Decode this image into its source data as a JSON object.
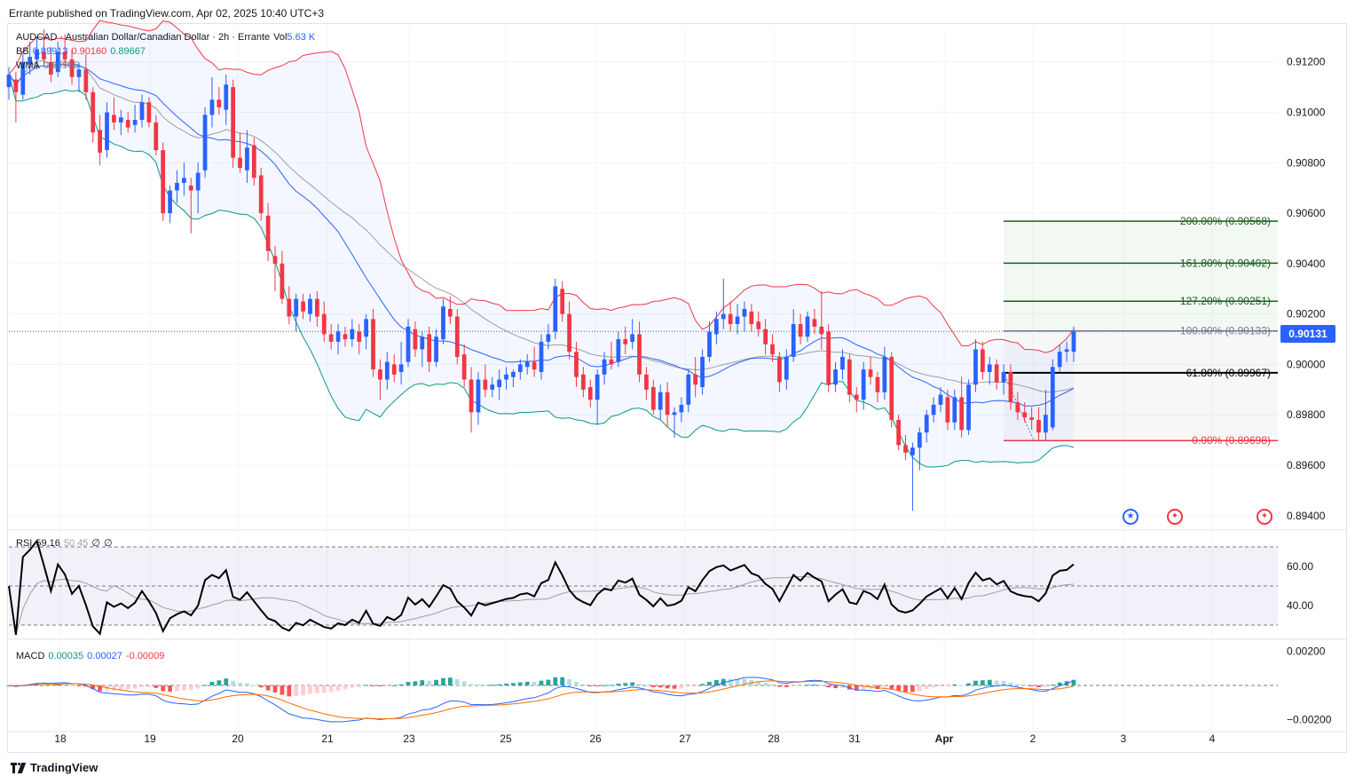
{
  "header": {
    "publisher": "Errante published on TradingView.com, Apr 02, 2025 10:40 UTC+3"
  },
  "legend": {
    "symbol": "AUDCAD · Australian Dollar/Canadian Dollar · 2h · Errante",
    "vol_label": "Vol",
    "vol_value": "5.63 K",
    "bb_label": "BB",
    "bb_basis": "0.89913",
    "bb_upper": "0.90160",
    "bb_lower": "0.89667",
    "wma_label": "WMA",
    "wma_value": "0.89905"
  },
  "rsi_legend": {
    "label": "RSI",
    "value": "59.16",
    "ma": "50.45",
    "a": "∅",
    "b": "∅"
  },
  "macd_legend": {
    "label": "MACD",
    "hist": "0.00035",
    "macd": "0.00027",
    "signal": "-0.00009"
  },
  "last_price": "0.90131",
  "footer": {
    "brand": "TradingView"
  },
  "colors": {
    "up": "#2962ff",
    "down": "#f23645",
    "bb_upper": "#f23645",
    "bb_basis": "#2962ff",
    "bb_lower": "#089981",
    "wma": "#9e9e9e",
    "rsi": "#000000",
    "macd": "#2962ff",
    "signal": "#ff6d00"
  },
  "chart_data": {
    "type": "candlestick",
    "symbol": "AUDCAD",
    "interval": "2h",
    "y_axis_ticks": [
      0.912,
      0.91,
      0.908,
      0.906,
      0.904,
      0.902,
      0.9,
      0.898,
      0.896,
      0.894
    ],
    "y_axis_labels": [
      "0.91200",
      "0.91000",
      "0.90800",
      "0.90600",
      "0.90400",
      "0.90200",
      "0.90000",
      "0.89800",
      "0.89600",
      "0.89400"
    ],
    "x_axis_labels": [
      "18",
      "19",
      "20",
      "21",
      "23",
      "25",
      "26",
      "27",
      "28",
      "31",
      "Apr",
      "2",
      "3",
      "4"
    ],
    "ylim": [
      0.8935,
      0.9134
    ],
    "candles": [
      {
        "o": 0.911,
        "h": 0.9118,
        "l": 0.9105,
        "c": 0.9115
      },
      {
        "o": 0.9113,
        "h": 0.9116,
        "l": 0.9096,
        "c": 0.9108
      },
      {
        "o": 0.9107,
        "h": 0.9123,
        "l": 0.9105,
        "c": 0.912
      },
      {
        "o": 0.9119,
        "h": 0.9128,
        "l": 0.9115,
        "c": 0.9122
      },
      {
        "o": 0.9121,
        "h": 0.913,
        "l": 0.9117,
        "c": 0.9125
      },
      {
        "o": 0.9124,
        "h": 0.9133,
        "l": 0.9119,
        "c": 0.9121
      },
      {
        "o": 0.912,
        "h": 0.9126,
        "l": 0.9112,
        "c": 0.9115
      },
      {
        "o": 0.9116,
        "h": 0.9128,
        "l": 0.9114,
        "c": 0.9124
      },
      {
        "o": 0.9124,
        "h": 0.9131,
        "l": 0.9118,
        "c": 0.9121
      },
      {
        "o": 0.9121,
        "h": 0.9125,
        "l": 0.9111,
        "c": 0.9114
      },
      {
        "o": 0.9114,
        "h": 0.912,
        "l": 0.9108,
        "c": 0.9117
      },
      {
        "o": 0.9117,
        "h": 0.9123,
        "l": 0.9105,
        "c": 0.9108
      },
      {
        "o": 0.9108,
        "h": 0.911,
        "l": 0.9088,
        "c": 0.9092
      },
      {
        "o": 0.9093,
        "h": 0.9099,
        "l": 0.9079,
        "c": 0.9084
      },
      {
        "o": 0.9085,
        "h": 0.9104,
        "l": 0.9082,
        "c": 0.91
      },
      {
        "o": 0.9099,
        "h": 0.9106,
        "l": 0.9093,
        "c": 0.9096
      },
      {
        "o": 0.9096,
        "h": 0.9101,
        "l": 0.9091,
        "c": 0.9098
      },
      {
        "o": 0.9097,
        "h": 0.91,
        "l": 0.9092,
        "c": 0.9094
      },
      {
        "o": 0.9095,
        "h": 0.9103,
        "l": 0.9092,
        "c": 0.9097
      },
      {
        "o": 0.9097,
        "h": 0.9107,
        "l": 0.9094,
        "c": 0.9104
      },
      {
        "o": 0.9104,
        "h": 0.9106,
        "l": 0.9094,
        "c": 0.9096
      },
      {
        "o": 0.9096,
        "h": 0.9099,
        "l": 0.9083,
        "c": 0.9085
      },
      {
        "o": 0.9085,
        "h": 0.9088,
        "l": 0.9057,
        "c": 0.906
      },
      {
        "o": 0.906,
        "h": 0.9071,
        "l": 0.9056,
        "c": 0.9069
      },
      {
        "o": 0.9069,
        "h": 0.9077,
        "l": 0.9064,
        "c": 0.9072
      },
      {
        "o": 0.9072,
        "h": 0.908,
        "l": 0.9067,
        "c": 0.9074
      },
      {
        "o": 0.9071,
        "h": 0.9074,
        "l": 0.9052,
        "c": 0.9069
      },
      {
        "o": 0.9069,
        "h": 0.908,
        "l": 0.906,
        "c": 0.9076
      },
      {
        "o": 0.9077,
        "h": 0.9102,
        "l": 0.9074,
        "c": 0.9099
      },
      {
        "o": 0.9099,
        "h": 0.9114,
        "l": 0.9094,
        "c": 0.9105
      },
      {
        "o": 0.9105,
        "h": 0.911,
        "l": 0.9099,
        "c": 0.9102
      },
      {
        "o": 0.9101,
        "h": 0.9115,
        "l": 0.9095,
        "c": 0.9111
      },
      {
        "o": 0.911,
        "h": 0.9113,
        "l": 0.9078,
        "c": 0.9082
      },
      {
        "o": 0.9082,
        "h": 0.9092,
        "l": 0.9076,
        "c": 0.9078
      },
      {
        "o": 0.9077,
        "h": 0.9093,
        "l": 0.9072,
        "c": 0.9086
      },
      {
        "o": 0.9087,
        "h": 0.909,
        "l": 0.9071,
        "c": 0.9074
      },
      {
        "o": 0.9075,
        "h": 0.9078,
        "l": 0.9057,
        "c": 0.906
      },
      {
        "o": 0.9059,
        "h": 0.9064,
        "l": 0.9041,
        "c": 0.9045
      },
      {
        "o": 0.9043,
        "h": 0.9047,
        "l": 0.9029,
        "c": 0.904
      },
      {
        "o": 0.904,
        "h": 0.9045,
        "l": 0.9024,
        "c": 0.9026
      },
      {
        "o": 0.9026,
        "h": 0.9031,
        "l": 0.9016,
        "c": 0.9019
      },
      {
        "o": 0.9019,
        "h": 0.9028,
        "l": 0.9013,
        "c": 0.9026
      },
      {
        "o": 0.9025,
        "h": 0.9028,
        "l": 0.9018,
        "c": 0.9021
      },
      {
        "o": 0.902,
        "h": 0.9028,
        "l": 0.9017,
        "c": 0.9026
      },
      {
        "o": 0.9026,
        "h": 0.9029,
        "l": 0.9015,
        "c": 0.9019
      },
      {
        "o": 0.902,
        "h": 0.9025,
        "l": 0.9009,
        "c": 0.9012
      },
      {
        "o": 0.9012,
        "h": 0.9016,
        "l": 0.9006,
        "c": 0.9009
      },
      {
        "o": 0.9009,
        "h": 0.9016,
        "l": 0.9004,
        "c": 0.9013
      },
      {
        "o": 0.9012,
        "h": 0.9015,
        "l": 0.9007,
        "c": 0.901
      },
      {
        "o": 0.901,
        "h": 0.9018,
        "l": 0.9007,
        "c": 0.9014
      },
      {
        "o": 0.9013,
        "h": 0.9016,
        "l": 0.9004,
        "c": 0.9009
      },
      {
        "o": 0.9011,
        "h": 0.902,
        "l": 0.9006,
        "c": 0.9018
      },
      {
        "o": 0.9018,
        "h": 0.9022,
        "l": 0.8995,
        "c": 0.8998
      },
      {
        "o": 0.8998,
        "h": 0.9002,
        "l": 0.8986,
        "c": 0.8994
      },
      {
        "o": 0.8994,
        "h": 0.9005,
        "l": 0.899,
        "c": 0.9001
      },
      {
        "o": 0.9,
        "h": 0.9004,
        "l": 0.8993,
        "c": 0.8996
      },
      {
        "o": 0.8997,
        "h": 0.9009,
        "l": 0.8992,
        "c": 0.9
      },
      {
        "o": 0.9001,
        "h": 0.9018,
        "l": 0.8999,
        "c": 0.9015
      },
      {
        "o": 0.9014,
        "h": 0.9017,
        "l": 0.9003,
        "c": 0.9006
      },
      {
        "o": 0.9006,
        "h": 0.9013,
        "l": 0.8999,
        "c": 0.9011
      },
      {
        "o": 0.9012,
        "h": 0.9015,
        "l": 0.8997,
        "c": 0.9001
      },
      {
        "o": 0.9001,
        "h": 0.9014,
        "l": 0.8999,
        "c": 0.9011
      },
      {
        "o": 0.901,
        "h": 0.9026,
        "l": 0.9008,
        "c": 0.9023
      },
      {
        "o": 0.9022,
        "h": 0.9027,
        "l": 0.9016,
        "c": 0.9019
      },
      {
        "o": 0.9019,
        "h": 0.9022,
        "l": 0.9,
        "c": 0.9003
      },
      {
        "o": 0.9004,
        "h": 0.9008,
        "l": 0.8991,
        "c": 0.8994
      },
      {
        "o": 0.8994,
        "h": 0.8999,
        "l": 0.8973,
        "c": 0.8981
      },
      {
        "o": 0.8981,
        "h": 0.8997,
        "l": 0.8976,
        "c": 0.8994
      },
      {
        "o": 0.8994,
        "h": 0.9,
        "l": 0.8987,
        "c": 0.899
      },
      {
        "o": 0.899,
        "h": 0.8995,
        "l": 0.8987,
        "c": 0.8992
      },
      {
        "o": 0.8991,
        "h": 0.8998,
        "l": 0.8986,
        "c": 0.8994
      },
      {
        "o": 0.8994,
        "h": 0.8999,
        "l": 0.899,
        "c": 0.8996
      },
      {
        "o": 0.8995,
        "h": 0.8998,
        "l": 0.8991,
        "c": 0.8997
      },
      {
        "o": 0.8997,
        "h": 0.9002,
        "l": 0.8994,
        "c": 0.9
      },
      {
        "o": 0.8999,
        "h": 0.9004,
        "l": 0.8996,
        "c": 0.9001
      },
      {
        "o": 0.9001,
        "h": 0.9007,
        "l": 0.8995,
        "c": 0.8998
      },
      {
        "o": 0.8997,
        "h": 0.9012,
        "l": 0.8994,
        "c": 0.9009
      },
      {
        "o": 0.9009,
        "h": 0.9016,
        "l": 0.9006,
        "c": 0.9012
      },
      {
        "o": 0.9013,
        "h": 0.9034,
        "l": 0.901,
        "c": 0.9031
      },
      {
        "o": 0.903,
        "h": 0.9033,
        "l": 0.9017,
        "c": 0.902
      },
      {
        "o": 0.902,
        "h": 0.9025,
        "l": 0.9002,
        "c": 0.9005
      },
      {
        "o": 0.9005,
        "h": 0.9009,
        "l": 0.8991,
        "c": 0.8995
      },
      {
        "o": 0.8996,
        "h": 0.8999,
        "l": 0.8987,
        "c": 0.899
      },
      {
        "o": 0.8991,
        "h": 0.8994,
        "l": 0.8983,
        "c": 0.8986
      },
      {
        "o": 0.8986,
        "h": 0.8998,
        "l": 0.8976,
        "c": 0.8996
      },
      {
        "o": 0.8996,
        "h": 0.9005,
        "l": 0.8992,
        "c": 0.9002
      },
      {
        "o": 0.9002,
        "h": 0.9009,
        "l": 0.8998,
        "c": 0.9
      },
      {
        "o": 0.9001,
        "h": 0.9013,
        "l": 0.8999,
        "c": 0.901
      },
      {
        "o": 0.901,
        "h": 0.9015,
        "l": 0.9004,
        "c": 0.9008
      },
      {
        "o": 0.9009,
        "h": 0.9018,
        "l": 0.9006,
        "c": 0.9012
      },
      {
        "o": 0.9012,
        "h": 0.9017,
        "l": 0.8993,
        "c": 0.8996
      },
      {
        "o": 0.8996,
        "h": 0.8999,
        "l": 0.8986,
        "c": 0.899
      },
      {
        "o": 0.8991,
        "h": 0.8994,
        "l": 0.898,
        "c": 0.8982
      },
      {
        "o": 0.8982,
        "h": 0.8992,
        "l": 0.8978,
        "c": 0.8989
      },
      {
        "o": 0.8989,
        "h": 0.8993,
        "l": 0.8975,
        "c": 0.898
      },
      {
        "o": 0.898,
        "h": 0.8983,
        "l": 0.8971,
        "c": 0.8981
      },
      {
        "o": 0.8981,
        "h": 0.8987,
        "l": 0.8977,
        "c": 0.8984
      },
      {
        "o": 0.8984,
        "h": 0.8998,
        "l": 0.8981,
        "c": 0.8996
      },
      {
        "o": 0.8996,
        "h": 0.9003,
        "l": 0.8987,
        "c": 0.8992
      },
      {
        "o": 0.8991,
        "h": 0.9006,
        "l": 0.8988,
        "c": 0.9003
      },
      {
        "o": 0.9003,
        "h": 0.9017,
        "l": 0.9001,
        "c": 0.9013
      },
      {
        "o": 0.9012,
        "h": 0.9021,
        "l": 0.9008,
        "c": 0.9018
      },
      {
        "o": 0.9018,
        "h": 0.9034,
        "l": 0.9014,
        "c": 0.902
      },
      {
        "o": 0.902,
        "h": 0.9025,
        "l": 0.9013,
        "c": 0.9016
      },
      {
        "o": 0.9016,
        "h": 0.9024,
        "l": 0.9012,
        "c": 0.9019
      },
      {
        "o": 0.9019,
        "h": 0.9025,
        "l": 0.9013,
        "c": 0.9022
      },
      {
        "o": 0.9021,
        "h": 0.9024,
        "l": 0.9013,
        "c": 0.9016
      },
      {
        "o": 0.9017,
        "h": 0.9021,
        "l": 0.9011,
        "c": 0.9014
      },
      {
        "o": 0.9014,
        "h": 0.9018,
        "l": 0.9004,
        "c": 0.9008
      },
      {
        "o": 0.9008,
        "h": 0.9012,
        "l": 0.9001,
        "c": 0.9004
      },
      {
        "o": 0.9003,
        "h": 0.9005,
        "l": 0.8989,
        "c": 0.8993
      },
      {
        "o": 0.8994,
        "h": 0.9006,
        "l": 0.899,
        "c": 0.9003
      },
      {
        "o": 0.9003,
        "h": 0.9022,
        "l": 0.9001,
        "c": 0.9016
      },
      {
        "o": 0.9016,
        "h": 0.902,
        "l": 0.9008,
        "c": 0.9011
      },
      {
        "o": 0.9011,
        "h": 0.9021,
        "l": 0.9009,
        "c": 0.9019
      },
      {
        "o": 0.9018,
        "h": 0.9022,
        "l": 0.9012,
        "c": 0.9015
      },
      {
        "o": 0.9015,
        "h": 0.9029,
        "l": 0.9006,
        "c": 0.9012
      },
      {
        "o": 0.9013,
        "h": 0.9016,
        "l": 0.8989,
        "c": 0.8992
      },
      {
        "o": 0.8992,
        "h": 0.9001,
        "l": 0.8989,
        "c": 0.8998
      },
      {
        "o": 0.8998,
        "h": 0.9006,
        "l": 0.8994,
        "c": 0.9003
      },
      {
        "o": 0.9002,
        "h": 0.9004,
        "l": 0.8985,
        "c": 0.8988
      },
      {
        "o": 0.8988,
        "h": 0.8991,
        "l": 0.8981,
        "c": 0.8986
      },
      {
        "o": 0.8986,
        "h": 0.9001,
        "l": 0.8982,
        "c": 0.8998
      },
      {
        "o": 0.8998,
        "h": 0.9003,
        "l": 0.8992,
        "c": 0.8995
      },
      {
        "o": 0.8995,
        "h": 0.8997,
        "l": 0.8985,
        "c": 0.8989
      },
      {
        "o": 0.8989,
        "h": 0.9007,
        "l": 0.8986,
        "c": 0.9003
      },
      {
        "o": 0.9003,
        "h": 0.9005,
        "l": 0.8975,
        "c": 0.8978
      },
      {
        "o": 0.8978,
        "h": 0.898,
        "l": 0.8966,
        "c": 0.8968
      },
      {
        "o": 0.8968,
        "h": 0.8972,
        "l": 0.8962,
        "c": 0.8965
      },
      {
        "o": 0.8964,
        "h": 0.8969,
        "l": 0.8942,
        "c": 0.8967
      },
      {
        "o": 0.8967,
        "h": 0.8975,
        "l": 0.8958,
        "c": 0.8973
      },
      {
        "o": 0.8973,
        "h": 0.8982,
        "l": 0.8969,
        "c": 0.898
      },
      {
        "o": 0.898,
        "h": 0.8987,
        "l": 0.8977,
        "c": 0.8984
      },
      {
        "o": 0.8984,
        "h": 0.8991,
        "l": 0.8981,
        "c": 0.8988
      },
      {
        "o": 0.8987,
        "h": 0.899,
        "l": 0.8974,
        "c": 0.8977
      },
      {
        "o": 0.8977,
        "h": 0.899,
        "l": 0.8974,
        "c": 0.8987
      },
      {
        "o": 0.8987,
        "h": 0.8995,
        "l": 0.8971,
        "c": 0.8974
      },
      {
        "o": 0.8974,
        "h": 0.8994,
        "l": 0.8972,
        "c": 0.8992
      },
      {
        "o": 0.8992,
        "h": 0.901,
        "l": 0.8989,
        "c": 0.9006
      },
      {
        "o": 0.9006,
        "h": 0.9009,
        "l": 0.8994,
        "c": 0.8997
      },
      {
        "o": 0.8997,
        "h": 0.9003,
        "l": 0.8992,
        "c": 0.9
      },
      {
        "o": 0.9,
        "h": 0.9002,
        "l": 0.899,
        "c": 0.8993
      },
      {
        "o": 0.8993,
        "h": 0.9,
        "l": 0.8988,
        "c": 0.8997
      },
      {
        "o": 0.8997,
        "h": 0.9,
        "l": 0.8982,
        "c": 0.8985
      },
      {
        "o": 0.8985,
        "h": 0.8989,
        "l": 0.8978,
        "c": 0.8981
      },
      {
        "o": 0.8981,
        "h": 0.8985,
        "l": 0.8977,
        "c": 0.8979
      },
      {
        "o": 0.8979,
        "h": 0.8983,
        "l": 0.8974,
        "c": 0.8978
      },
      {
        "o": 0.8978,
        "h": 0.8983,
        "l": 0.897,
        "c": 0.8973
      },
      {
        "o": 0.8973,
        "h": 0.899,
        "l": 0.897,
        "c": 0.898
      },
      {
        "o": 0.8975,
        "h": 0.9002,
        "l": 0.8974,
        "c": 0.8999
      },
      {
        "o": 0.8999,
        "h": 0.9008,
        "l": 0.8997,
        "c": 0.9005
      },
      {
        "o": 0.9005,
        "h": 0.9009,
        "l": 0.9001,
        "c": 0.9006
      },
      {
        "o": 0.9005,
        "h": 0.9015,
        "l": 0.9001,
        "c": 0.9013
      }
    ],
    "fibonacci": [
      {
        "label": "200.00% (0.90568)",
        "level": 0.90568
      },
      {
        "label": "161.80% (0.90402)",
        "level": 0.90402
      },
      {
        "label": "127.20% (0.90251)",
        "level": 0.90251
      },
      {
        "label": "100.00% (0.90133)",
        "level": 0.90133
      },
      {
        "label": "61.80% (0.89967)",
        "level": 0.89967
      },
      {
        "label": "0.00% (0.89698)",
        "level": 0.89698
      }
    ],
    "rsi": {
      "y_axis_labels": [
        "60.00",
        "40.00"
      ],
      "y_ticks": [
        60,
        40
      ],
      "bands": [
        70,
        50,
        30
      ],
      "ylim": [
        25,
        75
      ]
    },
    "macd": {
      "y_axis_labels": [
        "0.00200",
        "−0.00200"
      ],
      "y_ticks": [
        0.002,
        -0.002
      ],
      "ylim": [
        -0.0026,
        0.0026
      ]
    }
  }
}
